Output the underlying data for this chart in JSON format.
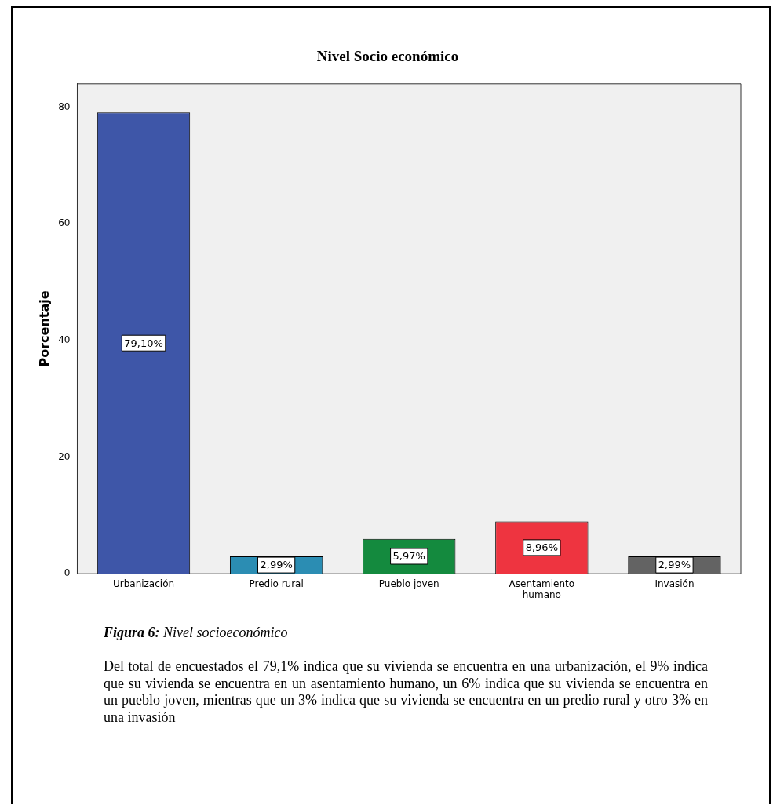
{
  "chart_data": {
    "type": "bar",
    "title": "Nivel Socio económico",
    "ylabel": "Porcentaje",
    "categories": [
      "Urbanización",
      "Predio rural",
      "Pueblo joven",
      "Asentamiento humano",
      "Invasión"
    ],
    "values": [
      79.1,
      2.99,
      5.97,
      8.96,
      2.99
    ],
    "colors": [
      "#3e56a8",
      "#2b8db3",
      "#148a3e",
      "#ee3440",
      "#636363"
    ],
    "value_labels": [
      "79,10%",
      "2,99%",
      "5,97%",
      "8,96%",
      "2,99%"
    ],
    "ylim": [
      0,
      84
    ],
    "yticks": [
      0,
      20,
      40,
      60,
      80
    ],
    "grid": false,
    "legend": false,
    "annotations": [
      "Figura 6: Nivel socioeconómico",
      "Del total de encuestados el 79,1% indica que su vivienda se encuentra en una urbanización, el 9% indica que su vivienda se encuentra en un asentamiento humano, un 6% indica que su vivienda se encuentra en un pueblo joven, mientras que un 3% indica que su vivienda se encuentra en un predio rural y otro 3% en una invasión"
    ]
  }
}
